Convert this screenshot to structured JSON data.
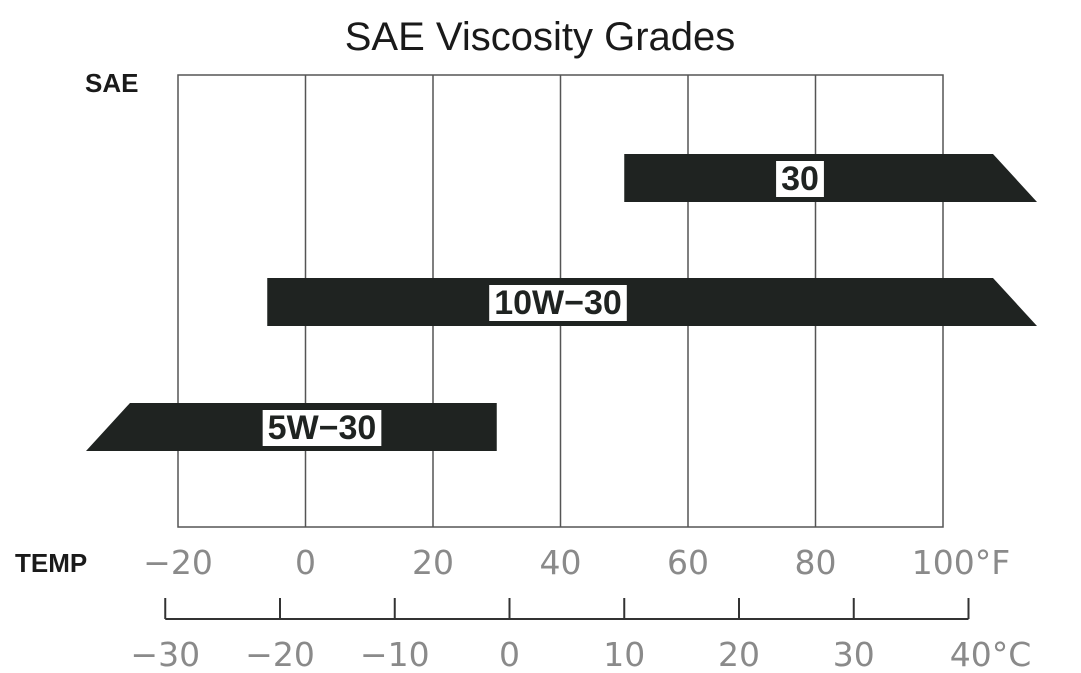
{
  "chart_data": {
    "type": "bar",
    "title": "SAE Viscosity Grades",
    "y_axis_name": "SAE",
    "x_axis_name": "TEMP",
    "fahrenheit_ticks": [
      "−20",
      "0",
      "20",
      "40",
      "60",
      "80",
      "100"
    ],
    "fahrenheit_unit": "°F",
    "celsius_ticks": [
      "−30",
      "−20",
      "−10",
      "0",
      "10",
      "20",
      "30",
      "40"
    ],
    "celsius_unit": "°C",
    "xlim_f": [
      -20,
      100
    ],
    "grid": true,
    "bar_color": "#1f2321",
    "series": [
      {
        "name": "30",
        "from_f": 50,
        "to_f": 100,
        "open_end": "high"
      },
      {
        "name": "10W−30",
        "from_f": -6,
        "to_f": 100,
        "open_end": "high"
      },
      {
        "name": "5W−30",
        "from_f": -20,
        "to_f": 30,
        "open_end": "low"
      }
    ]
  }
}
